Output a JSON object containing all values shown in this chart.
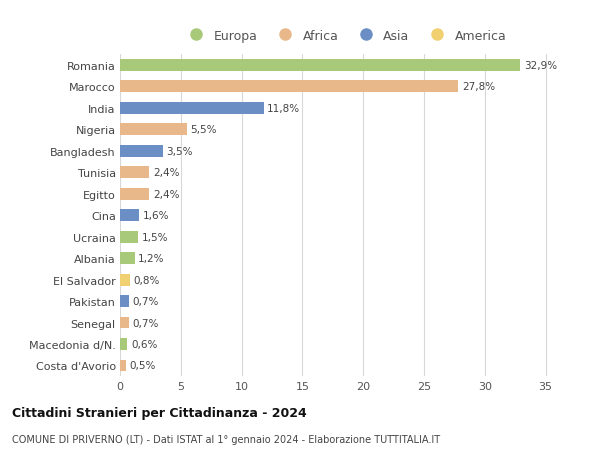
{
  "countries": [
    "Romania",
    "Marocco",
    "India",
    "Nigeria",
    "Bangladesh",
    "Tunisia",
    "Egitto",
    "Cina",
    "Ucraina",
    "Albania",
    "El Salvador",
    "Pakistan",
    "Senegal",
    "Macedonia d/N.",
    "Costa d'Avorio"
  ],
  "values": [
    32.9,
    27.8,
    11.8,
    5.5,
    3.5,
    2.4,
    2.4,
    1.6,
    1.5,
    1.2,
    0.8,
    0.7,
    0.7,
    0.6,
    0.5
  ],
  "labels": [
    "32,9%",
    "27,8%",
    "11,8%",
    "5,5%",
    "3,5%",
    "2,4%",
    "2,4%",
    "1,6%",
    "1,5%",
    "1,2%",
    "0,8%",
    "0,7%",
    "0,7%",
    "0,6%",
    "0,5%"
  ],
  "continents": [
    "Europa",
    "Africa",
    "Asia",
    "Africa",
    "Asia",
    "Africa",
    "Africa",
    "Asia",
    "Europa",
    "Europa",
    "America",
    "Asia",
    "Africa",
    "Europa",
    "Africa"
  ],
  "continent_colors": {
    "Europa": "#a8c87a",
    "Africa": "#e8b88a",
    "Asia": "#6b8fc4",
    "America": "#f0d070"
  },
  "legend_labels": [
    "Europa",
    "Africa",
    "Asia",
    "America"
  ],
  "title": "Cittadini Stranieri per Cittadinanza - 2024",
  "subtitle": "COMUNE DI PRIVERNO (LT) - Dati ISTAT al 1° gennaio 2024 - Elaborazione TUTTITALIA.IT",
  "xlim": [
    0,
    37
  ],
  "xticks": [
    0,
    5,
    10,
    15,
    20,
    25,
    30,
    35
  ],
  "bg_color": "#ffffff",
  "grid_color": "#d8d8d8",
  "bar_height": 0.55
}
